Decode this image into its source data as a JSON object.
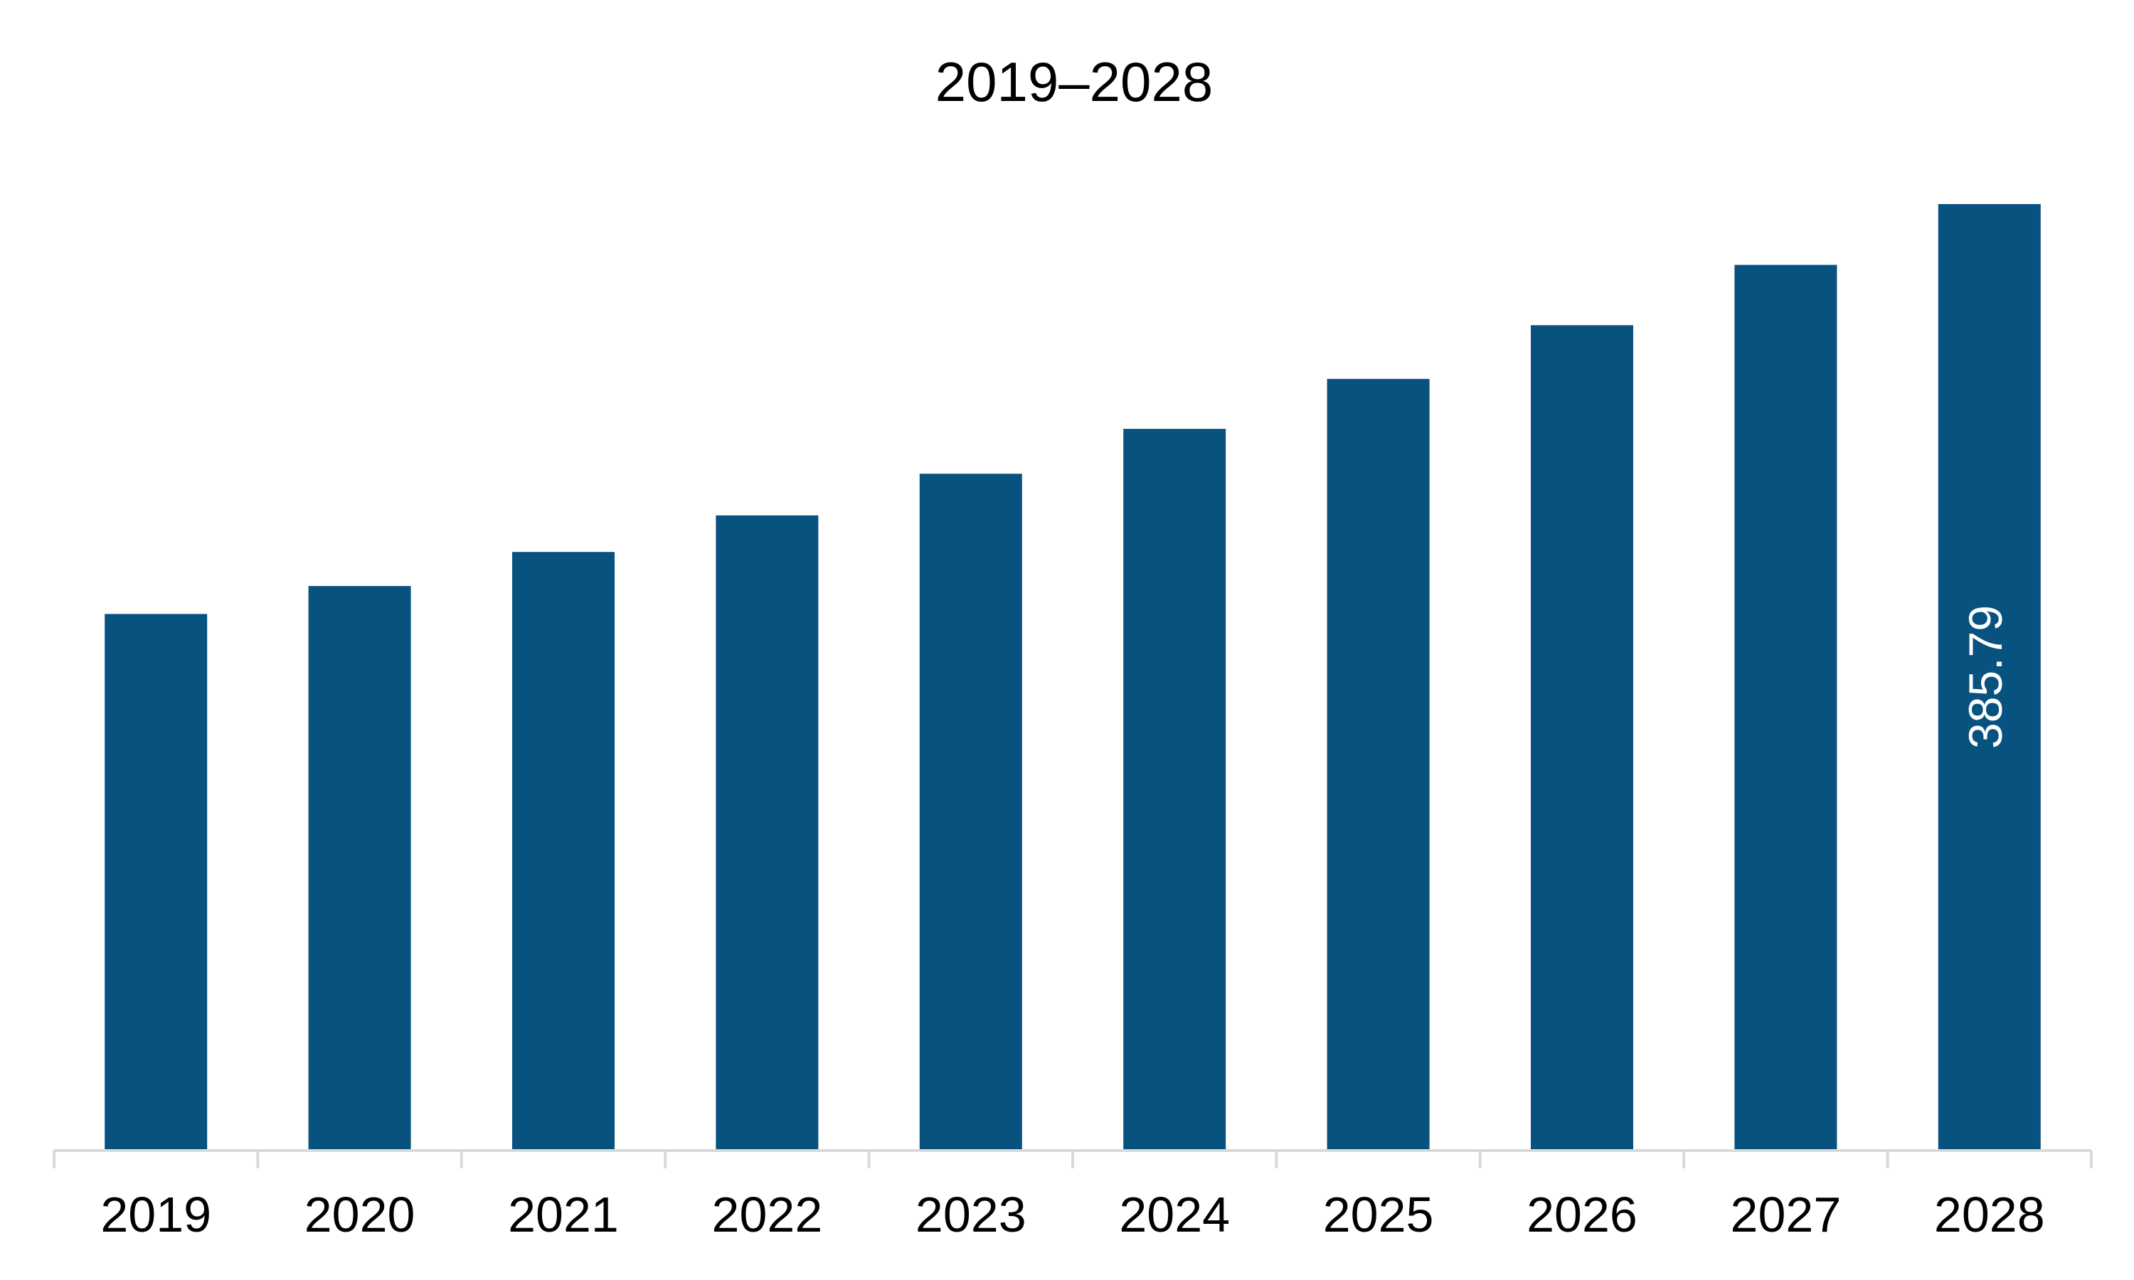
{
  "chart_data": {
    "type": "bar",
    "title": "2019–2028",
    "categories": [
      "2019",
      "2020",
      "2021",
      "2022",
      "2023",
      "2024",
      "2025",
      "2026",
      "2027",
      "2028"
    ],
    "values": [
      218.6,
      230.0,
      243.9,
      258.8,
      275.8,
      294.1,
      314.5,
      336.4,
      361.0,
      385.79
    ],
    "data_labels": [
      {
        "category": "2028",
        "label": "385.79"
      }
    ],
    "xlabel": "",
    "ylabel": "",
    "ylim": [
      0,
      400
    ],
    "grid": false,
    "legend": "none",
    "bar_color": "#08527F",
    "label_color": "#FFFFFF",
    "axis_color": "#D9D9D9"
  }
}
